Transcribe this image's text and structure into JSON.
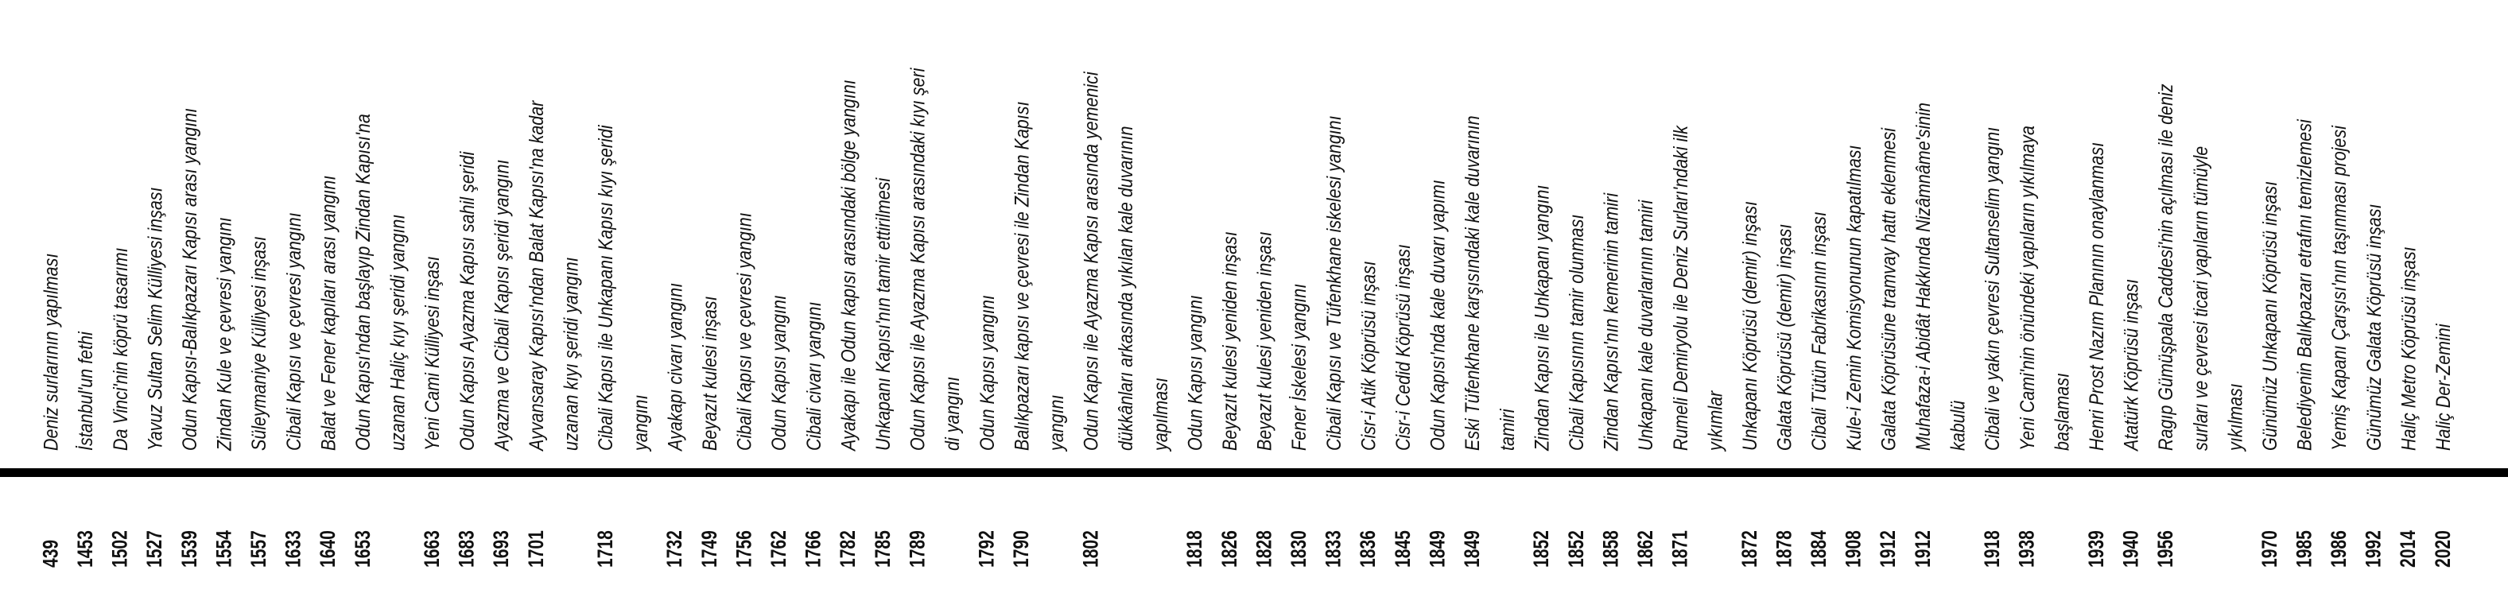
{
  "entries": [
    {
      "year": "439",
      "lines": [
        "Deniz surlarının yapılması"
      ]
    },
    {
      "year": "1453",
      "lines": [
        "İstanbul'un fethi"
      ]
    },
    {
      "year": "1502",
      "lines": [
        "Da Vinci'nin köprü tasarımı"
      ]
    },
    {
      "year": "1527",
      "lines": [
        "Yavuz Sultan Selim Külliyesi inşası"
      ]
    },
    {
      "year": "1539",
      "lines": [
        "Odun Kapısı-Balıkpazarı Kapısı arası yangını"
      ]
    },
    {
      "year": "1554",
      "lines": [
        "Zindan Kule ve çevresi yangını"
      ]
    },
    {
      "year": "1557",
      "lines": [
        "Süleymaniye Külliyesi inşası"
      ]
    },
    {
      "year": "1633",
      "lines": [
        "Cibali Kapısı ve çevresi yangını"
      ]
    },
    {
      "year": "1640",
      "lines": [
        "Balat ve Fener kapıları arası yangını"
      ]
    },
    {
      "year": "1653",
      "lines": [
        "Odun Kapısı'ndan başlayıp Zindan Kapısı'na",
        "uzanan Haliç kıyı şeridi yangını"
      ]
    },
    {
      "year": "1663",
      "lines": [
        "Yeni Cami Külliyesi inşası"
      ]
    },
    {
      "year": "1683",
      "lines": [
        "Odun Kapısı Ayazma Kapısı sahil şeridi"
      ]
    },
    {
      "year": "1693",
      "lines": [
        "Ayazma ve Cibali Kapısı şeridi yangını"
      ]
    },
    {
      "year": "1701",
      "lines": [
        "Ayvansaray Kapısı'ndan Balat Kapısı'na kadar",
        "uzanan kıyı şeridi yangını"
      ]
    },
    {
      "year": "1718",
      "lines": [
        "Cibali Kapısı ile Unkapanı Kapısı kıyı şeridi",
        "yangını"
      ]
    },
    {
      "year": "1732",
      "lines": [
        "Ayakapı civarı yangını"
      ]
    },
    {
      "year": "1749",
      "lines": [
        "Beyazıt kulesi inşası"
      ]
    },
    {
      "year": "1756",
      "lines": [
        "Cibali Kapısı ve çevresi yangını"
      ]
    },
    {
      "year": "1762",
      "lines": [
        "Odun Kapısı yangını"
      ]
    },
    {
      "year": "1766",
      "lines": [
        "Cibali civarı yangını"
      ]
    },
    {
      "year": "1782",
      "lines": [
        "Ayakapı ile Odun kapısı arasındaki bölge yangını"
      ]
    },
    {
      "year": "1785",
      "lines": [
        "Unkapanı Kapısı'nın tamir ettirilmesi"
      ]
    },
    {
      "year": "1789",
      "lines": [
        "Odun Kapısı ile Ayazma Kapısı arasındaki kıyı şeri",
        "di yangını"
      ]
    },
    {
      "year": "1792",
      "lines": [
        "Odun Kapısı yangını"
      ]
    },
    {
      "year": "1790",
      "lines": [
        "Balıkpazarı kapısı ve çevresi ile Zindan Kapısı",
        "yangını"
      ]
    },
    {
      "year": "1802",
      "lines": [
        "Odun Kapısı ile Ayazma Kapısı arasında yemenici",
        "dükkânları arkasında yıkılan kale duvarının",
        "yapılması"
      ]
    },
    {
      "year": "1818",
      "lines": [
        "Odun Kapısı yangını"
      ]
    },
    {
      "year": "1826",
      "lines": [
        "Beyazıt kulesi yeniden inşası"
      ]
    },
    {
      "year": "1828",
      "lines": [
        "Beyazıt kulesi yeniden inşası"
      ]
    },
    {
      "year": "1830",
      "lines": [
        "Fener İskelesi yangını"
      ]
    },
    {
      "year": "1833",
      "lines": [
        "Cibali Kapısı ve Tüfenkhane iskelesi yangını"
      ]
    },
    {
      "year": "1836",
      "lines": [
        "Cisr-i Atik Köprüsü inşası"
      ]
    },
    {
      "year": "1845",
      "lines": [
        "Cisr-i Cedid Köprüsü inşası"
      ]
    },
    {
      "year": "1849",
      "lines": [
        "Odun Kapısı'nda kale duvarı yapımı"
      ]
    },
    {
      "year": "1849",
      "lines": [
        "Eski Tüfenkhane karşısındaki kale duvarının",
        "tamiri"
      ]
    },
    {
      "year": "1852",
      "lines": [
        "Zindan Kapısı ile Unkapanı yangını"
      ]
    },
    {
      "year": "1852",
      "lines": [
        "Cibali Kapısının tamir olunması"
      ]
    },
    {
      "year": "1858",
      "lines": [
        "Zindan Kapısı'nın kemerinin tamiri"
      ]
    },
    {
      "year": "1862",
      "lines": [
        "Unkapanı kale duvarlarının tamiri"
      ]
    },
    {
      "year": "1871",
      "lines": [
        "Rumeli Demiryolu ile Deniz Surları'ndaki ilk",
        "yıkımlar"
      ]
    },
    {
      "year": "1872",
      "lines": [
        "Unkapanı Köprüsü (demir) inşası"
      ]
    },
    {
      "year": "1878",
      "lines": [
        "Galata Köprüsü (demir) inşası"
      ]
    },
    {
      "year": "1884",
      "lines": [
        "Cibali Tütün Fabrikasının inşası"
      ]
    },
    {
      "year": "1908",
      "lines": [
        "Kule-i Zemin Komisyonunun kapatılması"
      ]
    },
    {
      "year": "1912",
      "lines": [
        "Galata Köprüsüne tramvay hattı eklenmesi"
      ]
    },
    {
      "year": "1912",
      "lines": [
        "Muhafaza-i Abidât Hakkında Nizâmnâme'sinin",
        "kabulü"
      ]
    },
    {
      "year": "1918",
      "lines": [
        "Cibali ve yakın çevresi Sultanselim yangını"
      ]
    },
    {
      "year": "1938",
      "lines": [
        "Yeni Cami'nin önündeki yapıların yıkılmaya",
        "başlaması"
      ]
    },
    {
      "year": "1939",
      "lines": [
        "Henri Prost Nazım Planının onaylanması"
      ]
    },
    {
      "year": "1940",
      "lines": [
        "Atatürk Köprüsü inşası"
      ]
    },
    {
      "year": "1956",
      "lines": [
        "Ragıp Gümüşpala Caddesi'nin açılması ile deniz",
        "surları ve çevresi ticari yapıların tümüyle",
        "yıkılması"
      ]
    },
    {
      "year": "1970",
      "lines": [
        "Günümüz Unkapanı Köprüsü inşası"
      ]
    },
    {
      "year": "1985",
      "lines": [
        "Belediyenin Balıkpazarı etrafını temizlemesi"
      ]
    },
    {
      "year": "1986",
      "lines": [
        "Yemiş Kapanı Çarşısı'nın taşınması projesi"
      ]
    },
    {
      "year": "1992",
      "lines": [
        "Günümüz Galata Köprüsü inşası"
      ]
    },
    {
      "year": "2014",
      "lines": [
        "Haliç Metro Köprüsü inşası"
      ]
    },
    {
      "year": "2020",
      "lines": [
        "Haliç Der-Zemini"
      ]
    }
  ]
}
